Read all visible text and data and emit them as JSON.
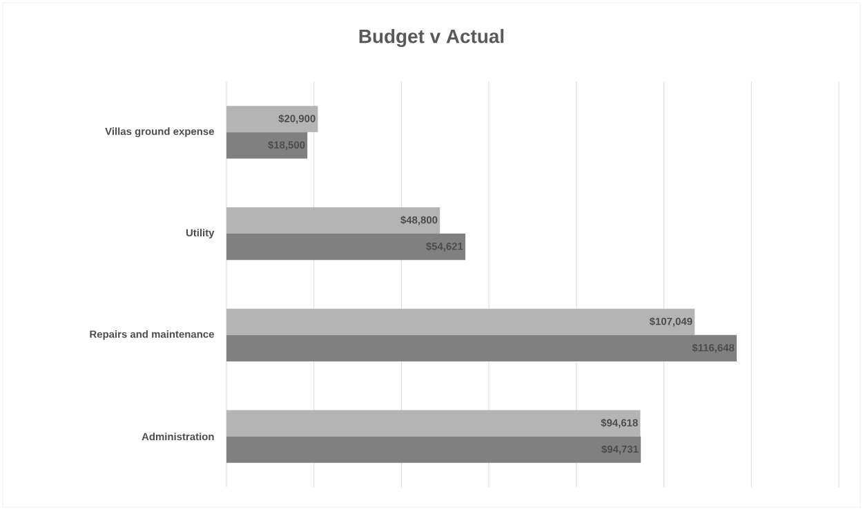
{
  "chart_data": {
    "type": "bar",
    "orientation": "horizontal",
    "title": "Budget v Actual",
    "categories": [
      "Villas ground expense",
      "Utility",
      "Repairs and maintenance",
      "Administration"
    ],
    "series": [
      {
        "color": "#b4b4b4",
        "values": [
          20900,
          48800,
          107049,
          94618
        ],
        "value_labels": [
          "$20,900",
          "$48,800",
          "$107,049",
          "$94,618"
        ]
      },
      {
        "color": "#808080",
        "values": [
          18500,
          54621,
          116648,
          94731
        ],
        "value_labels": [
          "$18,500",
          "$54,621",
          "$116,648",
          "$94,731"
        ]
      }
    ],
    "xlim": [
      0,
      140000
    ],
    "xticks": [
      {
        "value": 0,
        "label": null
      },
      {
        "value": 20000,
        "label": null
      },
      {
        "value": 40000,
        "label": null
      },
      {
        "value": 60000,
        "label": null
      },
      {
        "value": 80000,
        "label": null
      },
      {
        "value": 100000,
        "label": null
      },
      {
        "value": 120000,
        "label": null
      },
      {
        "value": 140000,
        "label": null
      }
    ],
    "grid": "x",
    "tick_labels": "y"
  }
}
